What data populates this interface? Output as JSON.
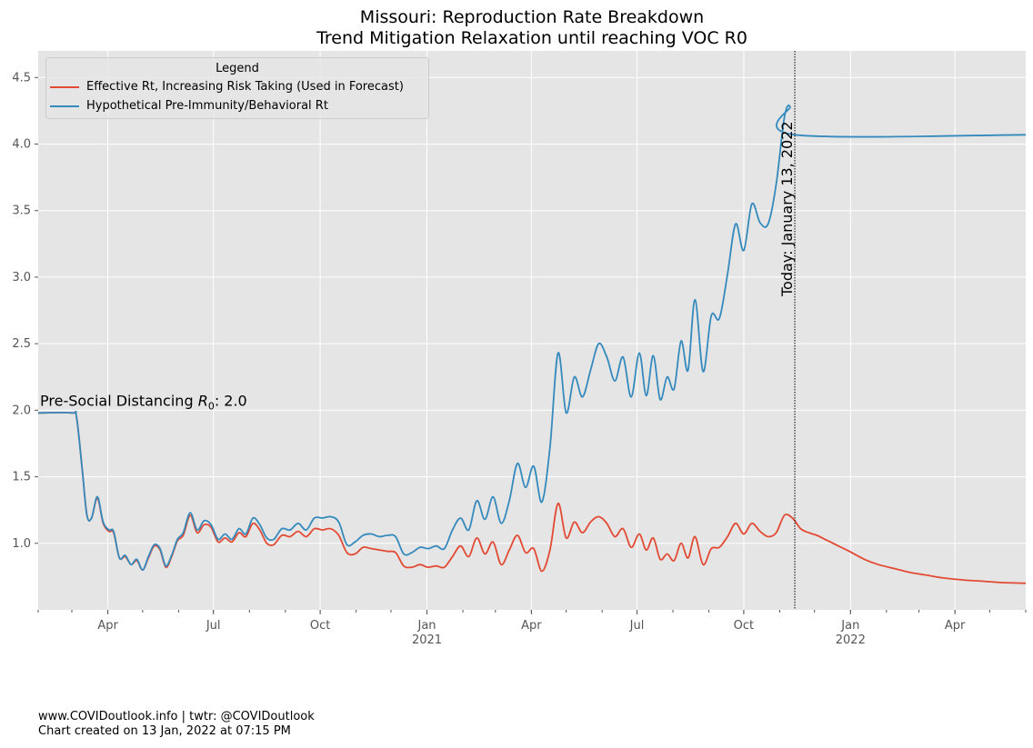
{
  "chart_data": {
    "type": "line",
    "title": "Missouri: Reproduction Rate Breakdown",
    "subtitle": "Trend Mitigation Relaxation until reaching VOC R0",
    "ylim": [
      0.5,
      4.7
    ],
    "yticks": [
      "1.0",
      "1.5",
      "2.0",
      "2.5",
      "3.0",
      "3.5",
      "4.0",
      "4.5"
    ],
    "xlim": [
      "2020-02-01",
      "2022-06-01"
    ],
    "xticks": [
      {
        "date": "2020-04-01",
        "label": "Apr",
        "year": ""
      },
      {
        "date": "2020-07-01",
        "label": "Jul",
        "year": ""
      },
      {
        "date": "2020-10-01",
        "label": "Oct",
        "year": ""
      },
      {
        "date": "2021-01-01",
        "label": "Jan",
        "year": "2021"
      },
      {
        "date": "2021-04-01",
        "label": "Apr",
        "year": ""
      },
      {
        "date": "2021-07-01",
        "label": "Jul",
        "year": ""
      },
      {
        "date": "2021-10-01",
        "label": "Oct",
        "year": ""
      },
      {
        "date": "2022-01-01",
        "label": "Jan",
        "year": "2022"
      },
      {
        "date": "2022-04-01",
        "label": "Apr",
        "year": ""
      }
    ],
    "grid": true,
    "legend": {
      "title": "Legend",
      "placement": "top-left"
    },
    "series": [
      {
        "name": "Effective Rt, Increasing Risk Taking (Used in Forecast)",
        "color": "#E24A33",
        "points": [
          [
            "2020-02-01",
            1.98
          ],
          [
            "2020-03-01",
            1.98
          ],
          [
            "2020-03-05",
            1.95
          ],
          [
            "2020-03-10",
            1.55
          ],
          [
            "2020-03-14",
            1.21
          ],
          [
            "2020-03-18",
            1.19
          ],
          [
            "2020-03-23",
            1.34
          ],
          [
            "2020-03-28",
            1.15
          ],
          [
            "2020-04-02",
            1.09
          ],
          [
            "2020-04-06",
            1.08
          ],
          [
            "2020-04-11",
            0.89
          ],
          [
            "2020-04-16",
            0.9
          ],
          [
            "2020-04-21",
            0.84
          ],
          [
            "2020-04-26",
            0.87
          ],
          [
            "2020-05-01",
            0.8
          ],
          [
            "2020-05-06",
            0.89
          ],
          [
            "2020-05-11",
            0.98
          ],
          [
            "2020-05-16",
            0.95
          ],
          [
            "2020-05-21",
            0.82
          ],
          [
            "2020-05-26",
            0.9
          ],
          [
            "2020-05-31",
            1.02
          ],
          [
            "2020-06-05",
            1.06
          ],
          [
            "2020-06-11",
            1.21
          ],
          [
            "2020-06-17",
            1.08
          ],
          [
            "2020-06-23",
            1.14
          ],
          [
            "2020-06-29",
            1.12
          ],
          [
            "2020-07-05",
            1.01
          ],
          [
            "2020-07-11",
            1.04
          ],
          [
            "2020-07-17",
            1.01
          ],
          [
            "2020-07-23",
            1.08
          ],
          [
            "2020-07-29",
            1.05
          ],
          [
            "2020-08-04",
            1.15
          ],
          [
            "2020-08-10",
            1.1
          ],
          [
            "2020-08-16",
            1.0
          ],
          [
            "2020-08-22",
            0.99
          ],
          [
            "2020-08-29",
            1.06
          ],
          [
            "2020-09-05",
            1.05
          ],
          [
            "2020-09-12",
            1.09
          ],
          [
            "2020-09-19",
            1.05
          ],
          [
            "2020-09-26",
            1.11
          ],
          [
            "2020-10-03",
            1.1
          ],
          [
            "2020-10-10",
            1.11
          ],
          [
            "2020-10-17",
            1.06
          ],
          [
            "2020-10-24",
            0.93
          ],
          [
            "2020-10-31",
            0.92
          ],
          [
            "2020-11-07",
            0.97
          ],
          [
            "2020-11-14",
            0.96
          ],
          [
            "2020-11-21",
            0.95
          ],
          [
            "2020-11-28",
            0.94
          ],
          [
            "2020-12-05",
            0.93
          ],
          [
            "2020-12-12",
            0.83
          ],
          [
            "2020-12-19",
            0.82
          ],
          [
            "2020-12-26",
            0.84
          ],
          [
            "2021-01-02",
            0.82
          ],
          [
            "2021-01-09",
            0.83
          ],
          [
            "2021-01-16",
            0.82
          ],
          [
            "2021-01-23",
            0.9
          ],
          [
            "2021-01-30",
            0.98
          ],
          [
            "2021-02-06",
            0.9
          ],
          [
            "2021-02-13",
            1.04
          ],
          [
            "2021-02-20",
            0.92
          ],
          [
            "2021-02-27",
            1.01
          ],
          [
            "2021-03-06",
            0.84
          ],
          [
            "2021-03-13",
            0.95
          ],
          [
            "2021-03-20",
            1.06
          ],
          [
            "2021-03-27",
            0.93
          ],
          [
            "2021-04-03",
            0.96
          ],
          [
            "2021-04-10",
            0.79
          ],
          [
            "2021-04-17",
            0.95
          ],
          [
            "2021-04-24",
            1.3
          ],
          [
            "2021-05-01",
            1.04
          ],
          [
            "2021-05-08",
            1.16
          ],
          [
            "2021-05-15",
            1.08
          ],
          [
            "2021-05-22",
            1.16
          ],
          [
            "2021-05-29",
            1.2
          ],
          [
            "2021-06-05",
            1.15
          ],
          [
            "2021-06-12",
            1.05
          ],
          [
            "2021-06-19",
            1.11
          ],
          [
            "2021-06-26",
            0.97
          ],
          [
            "2021-07-03",
            1.07
          ],
          [
            "2021-07-09",
            0.95
          ],
          [
            "2021-07-15",
            1.04
          ],
          [
            "2021-07-21",
            0.88
          ],
          [
            "2021-07-27",
            0.92
          ],
          [
            "2021-08-02",
            0.87
          ],
          [
            "2021-08-08",
            1.0
          ],
          [
            "2021-08-14",
            0.89
          ],
          [
            "2021-08-20",
            1.05
          ],
          [
            "2021-08-27",
            0.84
          ],
          [
            "2021-09-03",
            0.96
          ],
          [
            "2021-09-10",
            0.97
          ],
          [
            "2021-09-17",
            1.05
          ],
          [
            "2021-09-24",
            1.15
          ],
          [
            "2021-10-01",
            1.07
          ],
          [
            "2021-10-08",
            1.15
          ],
          [
            "2021-10-15",
            1.09
          ],
          [
            "2021-10-22",
            1.05
          ],
          [
            "2021-10-29",
            1.08
          ],
          [
            "2021-11-05",
            1.21
          ],
          [
            "2021-11-12",
            1.19
          ],
          [
            "2021-11-19",
            1.11
          ],
          [
            "2021-11-26",
            1.08
          ],
          [
            "2021-12-03",
            1.06
          ],
          [
            "2021-12-10",
            1.03
          ],
          [
            "2021-12-17",
            1.0
          ],
          [
            "2021-12-24",
            0.97
          ],
          [
            "2021-12-31",
            0.94
          ],
          [
            "2022-01-13",
            0.88
          ],
          [
            "2022-01-25",
            0.84
          ],
          [
            "2022-02-08",
            0.81
          ],
          [
            "2022-02-22",
            0.78
          ],
          [
            "2022-03-08",
            0.76
          ],
          [
            "2022-03-22",
            0.74
          ],
          [
            "2022-04-08",
            0.725
          ],
          [
            "2022-04-25",
            0.715
          ],
          [
            "2022-05-12",
            0.705
          ],
          [
            "2022-06-01",
            0.7
          ]
        ]
      },
      {
        "name": "Hypothetical Pre-Immunity/Behavioral Rt",
        "color": "#348ABD",
        "points": [
          [
            "2020-02-01",
            1.98
          ],
          [
            "2020-03-01",
            1.98
          ],
          [
            "2020-03-05",
            1.95
          ],
          [
            "2020-03-10",
            1.55
          ],
          [
            "2020-03-14",
            1.21
          ],
          [
            "2020-03-18",
            1.19
          ],
          [
            "2020-03-23",
            1.35
          ],
          [
            "2020-03-28",
            1.16
          ],
          [
            "2020-04-02",
            1.1
          ],
          [
            "2020-04-06",
            1.09
          ],
          [
            "2020-04-11",
            0.89
          ],
          [
            "2020-04-16",
            0.91
          ],
          [
            "2020-04-21",
            0.84
          ],
          [
            "2020-04-26",
            0.88
          ],
          [
            "2020-05-01",
            0.8
          ],
          [
            "2020-05-06",
            0.9
          ],
          [
            "2020-05-11",
            0.99
          ],
          [
            "2020-05-16",
            0.96
          ],
          [
            "2020-05-21",
            0.83
          ],
          [
            "2020-05-26",
            0.91
          ],
          [
            "2020-05-31",
            1.03
          ],
          [
            "2020-06-05",
            1.08
          ],
          [
            "2020-06-11",
            1.23
          ],
          [
            "2020-06-17",
            1.1
          ],
          [
            "2020-06-23",
            1.17
          ],
          [
            "2020-06-29",
            1.14
          ],
          [
            "2020-07-05",
            1.03
          ],
          [
            "2020-07-11",
            1.07
          ],
          [
            "2020-07-17",
            1.03
          ],
          [
            "2020-07-23",
            1.11
          ],
          [
            "2020-07-29",
            1.07
          ],
          [
            "2020-08-04",
            1.19
          ],
          [
            "2020-08-10",
            1.14
          ],
          [
            "2020-08-16",
            1.04
          ],
          [
            "2020-08-22",
            1.03
          ],
          [
            "2020-08-29",
            1.11
          ],
          [
            "2020-09-05",
            1.1
          ],
          [
            "2020-09-12",
            1.15
          ],
          [
            "2020-09-19",
            1.1
          ],
          [
            "2020-09-26",
            1.19
          ],
          [
            "2020-10-03",
            1.19
          ],
          [
            "2020-10-10",
            1.2
          ],
          [
            "2020-10-17",
            1.16
          ],
          [
            "2020-10-24",
            0.99
          ],
          [
            "2020-10-31",
            1.01
          ],
          [
            "2020-11-07",
            1.06
          ],
          [
            "2020-11-14",
            1.07
          ],
          [
            "2020-11-21",
            1.05
          ],
          [
            "2020-11-28",
            1.06
          ],
          [
            "2020-12-05",
            1.05
          ],
          [
            "2020-12-12",
            0.92
          ],
          [
            "2020-12-19",
            0.93
          ],
          [
            "2020-12-26",
            0.97
          ],
          [
            "2021-01-02",
            0.96
          ],
          [
            "2021-01-09",
            0.98
          ],
          [
            "2021-01-16",
            0.96
          ],
          [
            "2021-01-23",
            1.1
          ],
          [
            "2021-01-30",
            1.19
          ],
          [
            "2021-02-06",
            1.1
          ],
          [
            "2021-02-13",
            1.32
          ],
          [
            "2021-02-20",
            1.18
          ],
          [
            "2021-02-27",
            1.35
          ],
          [
            "2021-03-06",
            1.15
          ],
          [
            "2021-03-13",
            1.32
          ],
          [
            "2021-03-20",
            1.6
          ],
          [
            "2021-03-27",
            1.42
          ],
          [
            "2021-04-03",
            1.58
          ],
          [
            "2021-04-10",
            1.31
          ],
          [
            "2021-04-17",
            1.72
          ],
          [
            "2021-04-24",
            2.43
          ],
          [
            "2021-05-01",
            1.98
          ],
          [
            "2021-05-08",
            2.25
          ],
          [
            "2021-05-15",
            2.1
          ],
          [
            "2021-05-22",
            2.3
          ],
          [
            "2021-05-29",
            2.5
          ],
          [
            "2021-06-05",
            2.4
          ],
          [
            "2021-06-12",
            2.22
          ],
          [
            "2021-06-19",
            2.4
          ],
          [
            "2021-06-26",
            2.1
          ],
          [
            "2021-07-03",
            2.43
          ],
          [
            "2021-07-09",
            2.11
          ],
          [
            "2021-07-15",
            2.41
          ],
          [
            "2021-07-21",
            2.08
          ],
          [
            "2021-07-27",
            2.25
          ],
          [
            "2021-08-02",
            2.16
          ],
          [
            "2021-08-08",
            2.52
          ],
          [
            "2021-08-14",
            2.3
          ],
          [
            "2021-08-20",
            2.83
          ],
          [
            "2021-08-27",
            2.29
          ],
          [
            "2021-09-03",
            2.71
          ],
          [
            "2021-09-10",
            2.69
          ],
          [
            "2021-09-17",
            3.02
          ],
          [
            "2021-09-24",
            3.4
          ],
          [
            "2021-10-01",
            3.2
          ],
          [
            "2021-10-08",
            3.55
          ],
          [
            "2021-10-15",
            3.41
          ],
          [
            "2021-10-22",
            3.4
          ],
          [
            "2021-10-29",
            3.7
          ],
          [
            "2021-11-05",
            4.2
          ],
          [
            "2021-11-10",
            4.28
          ],
          [
            "2021-11-14",
            4.07
          ],
          [
            "2022-06-01",
            4.07
          ]
        ]
      }
    ],
    "annotations": [
      {
        "text": "Pre-Social Distancing R0: 2.0",
        "x": "2020-02-01",
        "y": 1.98
      },
      {
        "text": "Today: January 13, 2022",
        "x": "2021-11-14",
        "y": 0.5
      }
    ]
  },
  "title": "Missouri: Reproduction Rate Breakdown",
  "subtitle": "Trend Mitigation Relaxation until reaching VOC R0",
  "legend_title": "Legend",
  "today_label": "Today: January 13, 2022",
  "r0_prefix": "Pre-Social Distancing ",
  "r0_symbol": "R",
  "r0_sub": "0",
  "r0_suffix": ": 2.0",
  "footer": {
    "line1": "www.COVIDoutlook.info | twtr: @COVIDoutlook",
    "line2": "Chart created on 13 Jan, 2022 at 07:15 PM"
  }
}
